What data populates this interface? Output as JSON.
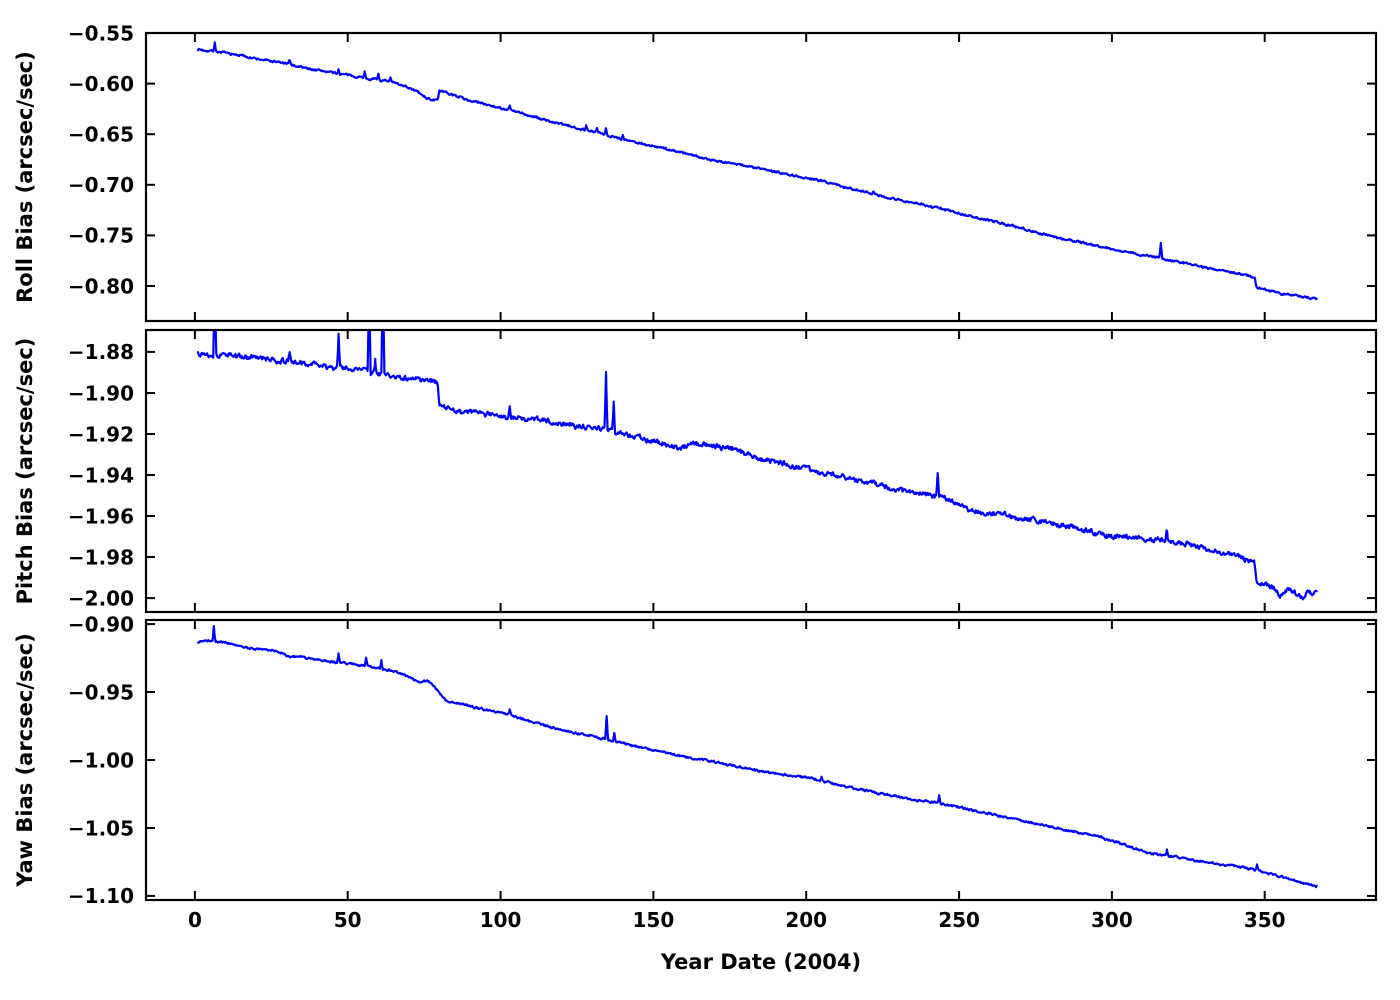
{
  "figure": {
    "background": "#ffffff",
    "frame_color": "#000000",
    "line_color": "#0000ff"
  },
  "chart_data": {
    "type": "line",
    "title": "",
    "xlabel": "Year Date (2004)",
    "xlim": [
      -16,
      386.4
    ],
    "x_ticks": [
      0,
      50,
      100,
      150,
      200,
      250,
      300,
      350
    ],
    "x_tick_labels": [
      "0",
      "50",
      "100",
      "150",
      "200",
      "250",
      "300",
      "350"
    ],
    "grid": false,
    "legend": "none",
    "series_color": "#0000ff",
    "subplots": [
      {
        "id": "roll",
        "ylabel": "Roll Bias (arcsec/sec)",
        "ylim": [
          -0.8346,
          -0.55
        ],
        "y_ticks": [
          -0.55,
          -0.6,
          -0.65,
          -0.7,
          -0.75,
          -0.8
        ],
        "y_tick_labels": [
          "−0.55",
          "−0.60",
          "−0.65",
          "−0.70",
          "−0.75",
          "−0.80"
        ],
        "x_range_days": [
          1,
          367
        ],
        "noise_amp": 0.0011,
        "seed": 7,
        "anchors": [
          [
            1,
            -0.566
          ],
          [
            7,
            -0.5685
          ],
          [
            20,
            -0.576
          ],
          [
            35,
            -0.584
          ],
          [
            50,
            -0.592
          ],
          [
            60,
            -0.5965
          ],
          [
            68,
            -0.602
          ],
          [
            73,
            -0.6085
          ],
          [
            75.5,
            -0.6145
          ],
          [
            79.4,
            -0.6175
          ],
          [
            79.9,
            -0.607
          ],
          [
            90,
            -0.6165
          ],
          [
            100,
            -0.6245
          ],
          [
            120,
            -0.6405
          ],
          [
            145,
            -0.658
          ],
          [
            170,
            -0.6755
          ],
          [
            200,
            -0.6925
          ],
          [
            215,
            -0.7035
          ],
          [
            230,
            -0.7145
          ],
          [
            245,
            -0.7245
          ],
          [
            257,
            -0.734
          ],
          [
            270,
            -0.7425
          ],
          [
            280,
            -0.75
          ],
          [
            300,
            -0.7635
          ],
          [
            316,
            -0.7725
          ],
          [
            330,
            -0.7815
          ],
          [
            340,
            -0.787
          ],
          [
            346.7,
            -0.7915
          ],
          [
            347.3,
            -0.8015
          ],
          [
            352,
            -0.8045
          ],
          [
            357,
            -0.8075
          ],
          [
            363,
            -0.8105
          ],
          [
            367,
            -0.8135
          ]
        ],
        "spikes": [
          [
            6.5,
            0.0085
          ],
          [
            31,
            0.004
          ],
          [
            47,
            0.0045
          ],
          [
            55.5,
            0.006
          ],
          [
            60,
            0.006
          ],
          [
            64,
            0.004
          ],
          [
            103,
            0.004
          ],
          [
            128,
            0.0045
          ],
          [
            131.5,
            0.0045
          ],
          [
            134.5,
            0.007
          ],
          [
            140,
            0.004
          ],
          [
            222,
            0.003
          ],
          [
            316,
            0.0145
          ]
        ]
      },
      {
        "id": "pitch",
        "ylabel": "Pitch Bias (arcsec/sec)",
        "ylim": [
          -2.0068,
          -1.8693
        ],
        "y_ticks": [
          -1.88,
          -1.9,
          -1.92,
          -1.94,
          -1.96,
          -1.98,
          -2.0
        ],
        "y_tick_labels": [
          "−1.88",
          "−1.90",
          "−1.92",
          "−1.94",
          "−1.96",
          "−1.98",
          "−2.00"
        ],
        "x_range_days": [
          1,
          367
        ],
        "noise_amp": 0.0013,
        "seed": 13,
        "anchors": [
          [
            1,
            -1.8802
          ],
          [
            10,
            -1.8815
          ],
          [
            20,
            -1.883
          ],
          [
            30,
            -1.8845
          ],
          [
            40,
            -1.886
          ],
          [
            47,
            -1.8875
          ],
          [
            55,
            -1.889
          ],
          [
            62,
            -1.8905
          ],
          [
            70,
            -1.8925
          ],
          [
            78,
            -1.8945
          ],
          [
            79.4,
            -1.8952
          ],
          [
            79.9,
            -1.9065
          ],
          [
            85,
            -1.9085
          ],
          [
            95,
            -1.9102
          ],
          [
            105,
            -1.9115
          ],
          [
            115,
            -1.9135
          ],
          [
            125,
            -1.916
          ],
          [
            133,
            -1.9175
          ],
          [
            140,
            -1.9195
          ],
          [
            148,
            -1.9225
          ],
          [
            155,
            -1.9255
          ],
          [
            159,
            -1.9268
          ],
          [
            164,
            -1.9245
          ],
          [
            170,
            -1.9255
          ],
          [
            178,
            -1.928
          ],
          [
            186,
            -1.9315
          ],
          [
            195,
            -1.935
          ],
          [
            205,
            -1.939
          ],
          [
            215,
            -1.942
          ],
          [
            225,
            -1.9455
          ],
          [
            235,
            -1.948
          ],
          [
            245,
            -1.9515
          ],
          [
            252,
            -1.9555
          ],
          [
            257,
            -1.9585
          ],
          [
            268,
            -1.9605
          ],
          [
            278,
            -1.962
          ],
          [
            288,
            -1.9655
          ],
          [
            296,
            -1.968
          ],
          [
            305,
            -1.97
          ],
          [
            315,
            -1.9715
          ],
          [
            325,
            -1.974
          ],
          [
            335,
            -1.977
          ],
          [
            342,
            -1.979
          ],
          [
            346.6,
            -1.9815
          ],
          [
            347.4,
            -1.9925
          ],
          [
            352,
            -1.9935
          ],
          [
            355.5,
            -1.9985
          ],
          [
            357.5,
            -1.9955
          ],
          [
            360,
            -1.9975
          ],
          [
            362.5,
            -2.0005
          ],
          [
            364,
            -1.996
          ],
          [
            365.5,
            -1.9995
          ],
          [
            367,
            -1.9965
          ]
        ],
        "spikes": [
          [
            6.5,
            0.04
          ],
          [
            31,
            0.004
          ],
          [
            47,
            0.0165
          ],
          [
            57,
            0.045
          ],
          [
            59,
            0.0065
          ],
          [
            61.5,
            0.05
          ],
          [
            103,
            0.005
          ],
          [
            134.5,
            0.028
          ],
          [
            137,
            0.0145
          ],
          [
            243,
            0.012
          ],
          [
            318,
            0.005
          ]
        ]
      },
      {
        "id": "yaw",
        "ylabel": "Yaw Bias (arcsec/sec)",
        "ylim": [
          -1.103,
          -0.897
        ],
        "y_ticks": [
          -0.9,
          -0.95,
          -1.0,
          -1.05,
          -1.1
        ],
        "y_tick_labels": [
          "−0.90",
          "−0.95",
          "−1.00",
          "−1.05",
          "−1.10"
        ],
        "x_range_days": [
          1,
          367
        ],
        "noise_amp": 0.0008,
        "seed": 21,
        "anchors": [
          [
            1,
            -0.9135
          ],
          [
            3,
            -0.912
          ],
          [
            6,
            -0.9125
          ],
          [
            10,
            -0.9135
          ],
          [
            15,
            -0.9165
          ],
          [
            25,
            -0.9195
          ],
          [
            31,
            -0.9235
          ],
          [
            38,
            -0.925
          ],
          [
            45,
            -0.9275
          ],
          [
            52,
            -0.9295
          ],
          [
            58,
            -0.9315
          ],
          [
            65,
            -0.9345
          ],
          [
            70,
            -0.9385
          ],
          [
            73.5,
            -0.9435
          ],
          [
            76,
            -0.9415
          ],
          [
            78,
            -0.9445
          ],
          [
            82,
            -0.9565
          ],
          [
            86,
            -0.958
          ],
          [
            93,
            -0.962
          ],
          [
            103,
            -0.967
          ],
          [
            111,
            -0.9725
          ],
          [
            119,
            -0.978
          ],
          [
            127,
            -0.9815
          ],
          [
            134,
            -0.9845
          ],
          [
            142,
            -0.989
          ],
          [
            150,
            -0.993
          ],
          [
            160,
            -0.9975
          ],
          [
            170,
            -1.0015
          ],
          [
            185,
            -1.008
          ],
          [
            200,
            -1.013
          ],
          [
            215,
            -1.02
          ],
          [
            230,
            -1.027
          ],
          [
            243,
            -1.0315
          ],
          [
            250,
            -1.0345
          ],
          [
            265,
            -1.0425
          ],
          [
            280,
            -1.049
          ],
          [
            296,
            -1.0565
          ],
          [
            312,
            -1.068
          ],
          [
            322,
            -1.0715
          ],
          [
            330,
            -1.0755
          ],
          [
            340,
            -1.078
          ],
          [
            346,
            -1.0805
          ],
          [
            352,
            -1.0835
          ],
          [
            357,
            -1.087
          ],
          [
            362,
            -1.09
          ],
          [
            367,
            -1.0925
          ]
        ],
        "spikes": [
          [
            6.2,
            0.0105
          ],
          [
            47,
            0.006
          ],
          [
            56,
            0.006
          ],
          [
            61,
            0.006
          ],
          [
            103,
            0.004
          ],
          [
            134.7,
            0.017
          ],
          [
            137.2,
            0.006
          ],
          [
            205,
            0.003
          ],
          [
            243.5,
            0.0055
          ],
          [
            318,
            0.004
          ],
          [
            347.5,
            0.0045
          ]
        ]
      }
    ]
  }
}
